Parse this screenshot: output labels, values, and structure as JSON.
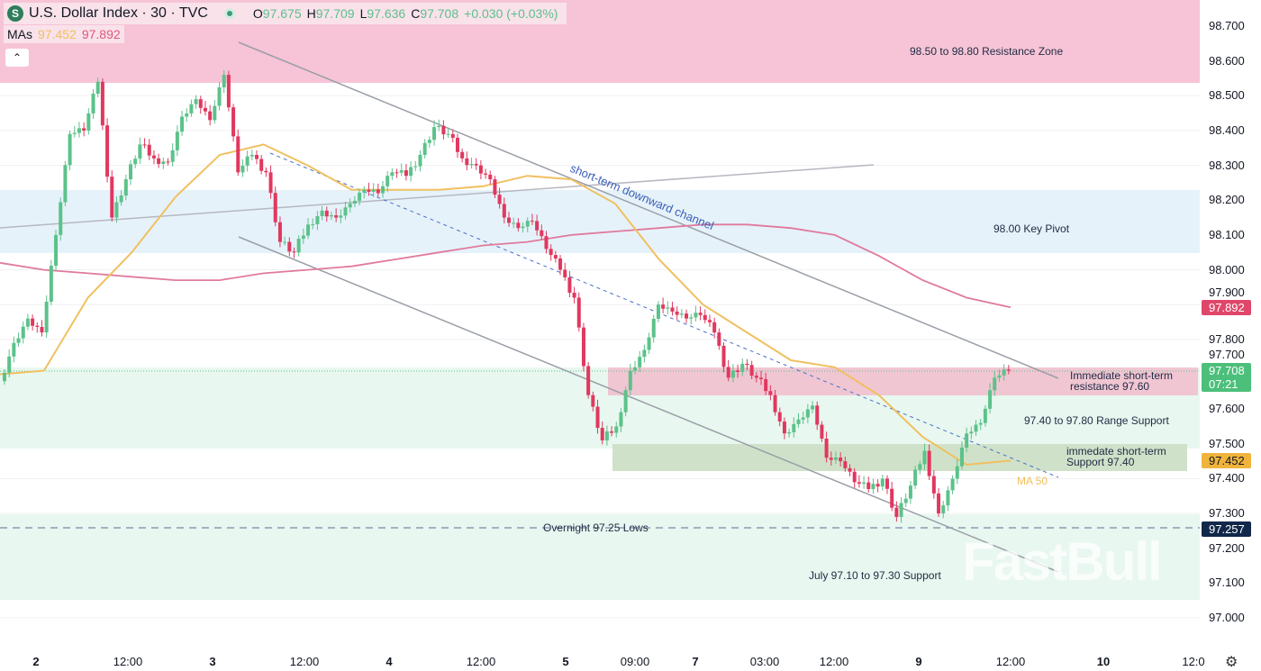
{
  "header": {
    "title": "U.S. Dollar Index · 30 · TVC",
    "open_label": "O",
    "open": "97.675",
    "high_label": "H",
    "high": "97.709",
    "low_label": "L",
    "low": "97.636",
    "close_label": "C",
    "close": "97.708",
    "change": "+0.030 (+0.03%)",
    "logo": "S"
  },
  "mas": {
    "label": "MAs",
    "ma50": "97.452",
    "ma200": "97.892"
  },
  "collapse_icon": "chevron-up-icon",
  "colors": {
    "up": "#5cc28a",
    "down": "#e0385f",
    "ma50": "#f0c060",
    "ma200": "#e07a9c"
  },
  "annotations": {
    "resistance_zone": "98.50 to 98.80 Resistance Zone",
    "key_pivot": "98.00 Key Pivot",
    "channel": "short-term downward channel",
    "imm_res_1": "Immediate short-term",
    "imm_res_2": "resistance 97.60",
    "range_support": "97.40 to 97.80 Range Support",
    "imm_sup_1": "immedate short-term",
    "imm_sup_2": "Support 97.40",
    "ma50": "MA 50",
    "overnight": "Overnight 97.25 Lows",
    "july": "July 97.10 to 97.30 Support"
  },
  "price_tags": {
    "ma200": "97.892",
    "last": "97.708",
    "countdown": "07:21",
    "ma50": "97.452",
    "overnight": "97.257"
  },
  "watermark": "FastBull",
  "chart_data": {
    "type": "candlestick",
    "ylim": [
      97.0,
      98.7
    ],
    "y_ticks": [
      "98.700",
      "98.600",
      "98.500",
      "98.400",
      "98.300",
      "98.200",
      "98.100",
      "98.000",
      "97.900",
      "97.800",
      "97.700",
      "97.600",
      "97.500",
      "97.400",
      "97.300",
      "97.200",
      "97.100",
      "97.000"
    ],
    "x_ticks": [
      "2",
      "12:00",
      "3",
      "12:00",
      "4",
      "12:00",
      "5",
      "09:00",
      "7",
      "03:00",
      "12:00",
      "9",
      "12:00",
      "10",
      "12:0"
    ],
    "price_path": [
      97.68,
      97.79,
      97.86,
      97.82,
      98.1,
      98.39,
      98.4,
      98.54,
      98.15,
      98.26,
      98.36,
      98.32,
      98.31,
      98.44,
      98.49,
      98.43,
      98.56,
      98.28,
      98.33,
      98.28,
      98.08,
      98.05,
      98.13,
      98.17,
      98.15,
      98.19,
      98.23,
      98.22,
      98.28,
      98.27,
      98.33,
      98.41,
      98.39,
      98.32,
      98.3,
      98.26,
      98.15,
      98.12,
      98.14,
      98.06,
      98.0,
      97.92,
      97.64,
      97.51,
      97.55,
      97.71,
      97.77,
      97.9,
      97.88,
      97.86,
      97.87,
      97.82,
      97.69,
      97.73,
      97.69,
      97.64,
      97.53,
      97.57,
      97.61,
      97.46,
      97.45,
      97.39,
      97.37,
      97.4,
      97.29,
      97.38,
      97.48,
      97.3,
      97.4,
      97.53,
      97.56,
      97.69,
      97.71
    ],
    "ma50": [
      97.7,
      97.71,
      97.92,
      98.05,
      98.21,
      98.33,
      98.36,
      98.3,
      98.23,
      98.23,
      98.23,
      98.24,
      98.27,
      98.26,
      98.19,
      98.03,
      97.9,
      97.82,
      97.74,
      97.72,
      97.64,
      97.52,
      97.44,
      97.452
    ],
    "ma200": [
      98.02,
      98.0,
      97.99,
      97.98,
      97.97,
      97.97,
      97.99,
      98.0,
      98.01,
      98.03,
      98.05,
      98.07,
      98.08,
      98.1,
      98.11,
      98.12,
      98.13,
      98.13,
      98.12,
      98.1,
      98.04,
      97.97,
      97.92,
      97.892
    ],
    "zones": [
      {
        "label": "98.50 to 98.80 Resistance Zone",
        "from": 98.54,
        "to": 98.86
      },
      {
        "label": "98.00 Key Pivot",
        "from": 98.05,
        "to": 98.23
      },
      {
        "label": "97.40 to 97.80 Range Support",
        "from": 97.45,
        "to": 97.71
      },
      {
        "label": "July 97.10 to 97.30 Support",
        "from": 97.05,
        "to": 97.29
      }
    ],
    "levels": [
      {
        "label": "Overnight 97.25 Lows",
        "value": 97.257
      }
    ]
  }
}
